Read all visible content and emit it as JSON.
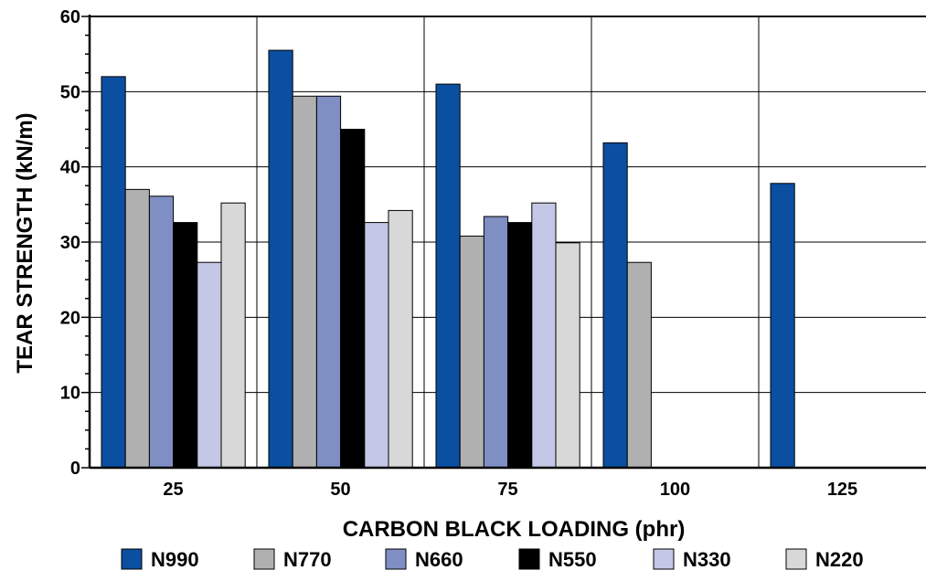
{
  "chart_data": {
    "type": "bar",
    "xlabel": "CARBON BLACK LOADING (phr)",
    "ylabel": "TEAR STRENGTH (kN/m)",
    "ylim": [
      0,
      60
    ],
    "yticks": [
      0,
      10,
      20,
      30,
      40,
      50,
      60
    ],
    "grid": true,
    "legend_position": "bottom",
    "categories": [
      "25",
      "50",
      "75",
      "100",
      "125"
    ],
    "series": [
      {
        "name": "N990",
        "color": "#0b4fa0",
        "values": [
          52,
          55.5,
          51,
          43.2,
          37.8
        ]
      },
      {
        "name": "N770",
        "color": "#b0b0b0",
        "values": [
          37,
          49.4,
          30.8,
          27.3,
          null
        ]
      },
      {
        "name": "N660",
        "color": "#7f8fc4",
        "values": [
          36.1,
          49.4,
          33.4,
          null,
          null
        ]
      },
      {
        "name": "N550",
        "color": "#000000",
        "values": [
          32.6,
          45,
          32.6,
          null,
          null
        ]
      },
      {
        "name": "N330",
        "color": "#c4c8e6",
        "values": [
          27.3,
          32.6,
          35.2,
          null,
          null
        ]
      },
      {
        "name": "N220",
        "color": "#d8d8d8",
        "values": [
          35.2,
          34.2,
          29.9,
          null,
          null
        ]
      }
    ]
  }
}
